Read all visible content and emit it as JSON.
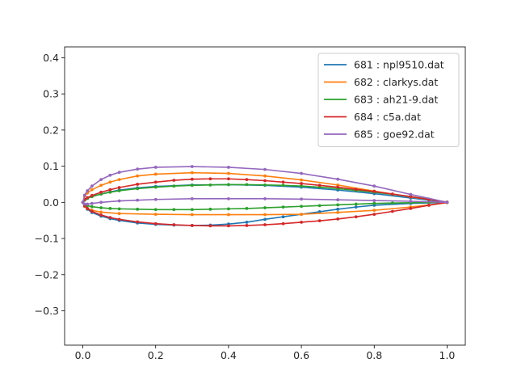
{
  "chart_data": {
    "type": "line",
    "title": "",
    "xlabel": "",
    "ylabel": "",
    "xlim": [
      -0.05,
      1.05
    ],
    "ylim": [
      -0.395,
      0.43
    ],
    "xticks": [
      0.0,
      0.2,
      0.4,
      0.6,
      0.8,
      1.0
    ],
    "yticks": [
      -0.3,
      -0.2,
      -0.1,
      0.0,
      0.1,
      0.2,
      0.3,
      0.4
    ],
    "grid": false,
    "legend_position": "top-right",
    "series": [
      {
        "name": "681 : npl9510.dat",
        "color": "#1f77b4",
        "upper": [
          [
            1.0,
            0.0
          ],
          [
            0.95,
            0.006
          ],
          [
            0.9,
            0.012
          ],
          [
            0.8,
            0.024
          ],
          [
            0.7,
            0.034
          ],
          [
            0.6,
            0.042
          ],
          [
            0.5,
            0.047
          ],
          [
            0.4,
            0.049
          ],
          [
            0.3,
            0.048
          ],
          [
            0.2,
            0.044
          ],
          [
            0.15,
            0.04
          ],
          [
            0.1,
            0.034
          ],
          [
            0.075,
            0.029
          ],
          [
            0.05,
            0.023
          ],
          [
            0.025,
            0.016
          ],
          [
            0.0125,
            0.011
          ],
          [
            0.005,
            0.006
          ],
          [
            0.0,
            0.0
          ]
        ],
        "lower": [
          [
            0.0,
            0.0
          ],
          [
            0.005,
            -0.011
          ],
          [
            0.0125,
            -0.019
          ],
          [
            0.025,
            -0.028
          ],
          [
            0.05,
            -0.038
          ],
          [
            0.075,
            -0.045
          ],
          [
            0.1,
            -0.05
          ],
          [
            0.15,
            -0.057
          ],
          [
            0.2,
            -0.061
          ],
          [
            0.25,
            -0.063
          ],
          [
            0.3,
            -0.064
          ],
          [
            0.35,
            -0.063
          ],
          [
            0.4,
            -0.06
          ],
          [
            0.45,
            -0.055
          ],
          [
            0.5,
            -0.047
          ],
          [
            0.55,
            -0.04
          ],
          [
            0.6,
            -0.033
          ],
          [
            0.65,
            -0.026
          ],
          [
            0.7,
            -0.019
          ],
          [
            0.75,
            -0.013
          ],
          [
            0.8,
            -0.008
          ],
          [
            0.9,
            -0.003
          ],
          [
            1.0,
            0.0
          ]
        ]
      },
      {
        "name": "682 : clarkys.dat",
        "color": "#ff7f0e",
        "upper": [
          [
            1.0,
            0.001
          ],
          [
            0.9,
            0.015
          ],
          [
            0.8,
            0.031
          ],
          [
            0.7,
            0.048
          ],
          [
            0.6,
            0.062
          ],
          [
            0.5,
            0.073
          ],
          [
            0.4,
            0.08
          ],
          [
            0.3,
            0.082
          ],
          [
            0.2,
            0.078
          ],
          [
            0.15,
            0.073
          ],
          [
            0.1,
            0.063
          ],
          [
            0.075,
            0.056
          ],
          [
            0.05,
            0.047
          ],
          [
            0.025,
            0.035
          ],
          [
            0.0125,
            0.026
          ],
          [
            0.005,
            0.017
          ],
          [
            0.0,
            0.0
          ]
        ],
        "lower": [
          [
            0.0,
            0.0
          ],
          [
            0.005,
            -0.011
          ],
          [
            0.0125,
            -0.017
          ],
          [
            0.025,
            -0.022
          ],
          [
            0.05,
            -0.027
          ],
          [
            0.1,
            -0.031
          ],
          [
            0.2,
            -0.033
          ],
          [
            0.3,
            -0.034
          ],
          [
            0.4,
            -0.034
          ],
          [
            0.5,
            -0.034
          ],
          [
            0.6,
            -0.033
          ],
          [
            0.7,
            -0.028
          ],
          [
            0.8,
            -0.022
          ],
          [
            0.9,
            -0.013
          ],
          [
            1.0,
            -0.001
          ]
        ]
      },
      {
        "name": "683 : ah21-9.dat",
        "color": "#2ca02c",
        "upper": [
          [
            1.0,
            0.0
          ],
          [
            0.95,
            0.009
          ],
          [
            0.9,
            0.016
          ],
          [
            0.85,
            0.022
          ],
          [
            0.8,
            0.028
          ],
          [
            0.75,
            0.033
          ],
          [
            0.7,
            0.038
          ],
          [
            0.65,
            0.042
          ],
          [
            0.6,
            0.045
          ],
          [
            0.55,
            0.047
          ],
          [
            0.5,
            0.048
          ],
          [
            0.45,
            0.049
          ],
          [
            0.4,
            0.049
          ],
          [
            0.35,
            0.048
          ],
          [
            0.3,
            0.047
          ],
          [
            0.25,
            0.045
          ],
          [
            0.2,
            0.042
          ],
          [
            0.15,
            0.038
          ],
          [
            0.1,
            0.032
          ],
          [
            0.075,
            0.028
          ],
          [
            0.05,
            0.023
          ],
          [
            0.025,
            0.016
          ],
          [
            0.0125,
            0.011
          ],
          [
            0.005,
            0.007
          ],
          [
            0.0,
            0.0
          ]
        ],
        "lower": [
          [
            0.0,
            0.0
          ],
          [
            0.005,
            -0.006
          ],
          [
            0.0125,
            -0.009
          ],
          [
            0.025,
            -0.012
          ],
          [
            0.05,
            -0.015
          ],
          [
            0.075,
            -0.017
          ],
          [
            0.1,
            -0.018
          ],
          [
            0.15,
            -0.019
          ],
          [
            0.2,
            -0.02
          ],
          [
            0.25,
            -0.02
          ],
          [
            0.3,
            -0.02
          ],
          [
            0.35,
            -0.019
          ],
          [
            0.4,
            -0.018
          ],
          [
            0.45,
            -0.017
          ],
          [
            0.5,
            -0.015
          ],
          [
            0.55,
            -0.013
          ],
          [
            0.6,
            -0.011
          ],
          [
            0.65,
            -0.009
          ],
          [
            0.7,
            -0.007
          ],
          [
            0.75,
            -0.005
          ],
          [
            0.8,
            -0.003
          ],
          [
            0.85,
            -0.002
          ],
          [
            0.9,
            -0.001
          ],
          [
            0.95,
            0.0
          ],
          [
            1.0,
            0.0
          ]
        ]
      },
      {
        "name": "684 : c5a.dat",
        "color": "#d62728",
        "upper": [
          [
            1.0,
            0.0
          ],
          [
            0.95,
            0.008
          ],
          [
            0.9,
            0.016
          ],
          [
            0.85,
            0.023
          ],
          [
            0.8,
            0.03
          ],
          [
            0.75,
            0.036
          ],
          [
            0.7,
            0.042
          ],
          [
            0.65,
            0.047
          ],
          [
            0.6,
            0.052
          ],
          [
            0.55,
            0.056
          ],
          [
            0.5,
            0.06
          ],
          [
            0.45,
            0.063
          ],
          [
            0.4,
            0.065
          ],
          [
            0.35,
            0.065
          ],
          [
            0.3,
            0.064
          ],
          [
            0.25,
            0.061
          ],
          [
            0.2,
            0.056
          ],
          [
            0.15,
            0.05
          ],
          [
            0.1,
            0.041
          ],
          [
            0.075,
            0.035
          ],
          [
            0.05,
            0.028
          ],
          [
            0.025,
            0.019
          ],
          [
            0.0125,
            0.013
          ],
          [
            0.005,
            0.008
          ],
          [
            0.0,
            0.0
          ]
        ],
        "lower": [
          [
            0.0,
            0.0
          ],
          [
            0.005,
            -0.01
          ],
          [
            0.0125,
            -0.017
          ],
          [
            0.025,
            -0.025
          ],
          [
            0.05,
            -0.035
          ],
          [
            0.075,
            -0.042
          ],
          [
            0.1,
            -0.047
          ],
          [
            0.15,
            -0.054
          ],
          [
            0.2,
            -0.059
          ],
          [
            0.25,
            -0.062
          ],
          [
            0.3,
            -0.064
          ],
          [
            0.35,
            -0.065
          ],
          [
            0.4,
            -0.065
          ],
          [
            0.45,
            -0.064
          ],
          [
            0.5,
            -0.062
          ],
          [
            0.55,
            -0.059
          ],
          [
            0.6,
            -0.055
          ],
          [
            0.65,
            -0.051
          ],
          [
            0.7,
            -0.046
          ],
          [
            0.75,
            -0.04
          ],
          [
            0.8,
            -0.033
          ],
          [
            0.85,
            -0.025
          ],
          [
            0.9,
            -0.017
          ],
          [
            0.95,
            -0.008
          ],
          [
            1.0,
            0.0
          ]
        ]
      },
      {
        "name": "685 : goe92.dat",
        "color": "#9467bd",
        "upper": [
          [
            1.0,
            0.0
          ],
          [
            0.9,
            0.022
          ],
          [
            0.8,
            0.045
          ],
          [
            0.7,
            0.064
          ],
          [
            0.6,
            0.08
          ],
          [
            0.5,
            0.091
          ],
          [
            0.4,
            0.097
          ],
          [
            0.3,
            0.099
          ],
          [
            0.2,
            0.097
          ],
          [
            0.15,
            0.092
          ],
          [
            0.1,
            0.083
          ],
          [
            0.075,
            0.075
          ],
          [
            0.05,
            0.063
          ],
          [
            0.025,
            0.045
          ],
          [
            0.0125,
            0.032
          ],
          [
            0.005,
            0.02
          ],
          [
            0.0,
            0.0
          ]
        ],
        "lower": [
          [
            0.0,
            0.0
          ],
          [
            0.005,
            -0.005
          ],
          [
            0.0125,
            -0.005
          ],
          [
            0.025,
            -0.003
          ],
          [
            0.05,
            0.0
          ],
          [
            0.1,
            0.004
          ],
          [
            0.15,
            0.006
          ],
          [
            0.2,
            0.008
          ],
          [
            0.3,
            0.01
          ],
          [
            0.4,
            0.01
          ],
          [
            0.5,
            0.01
          ],
          [
            0.6,
            0.009
          ],
          [
            0.7,
            0.007
          ],
          [
            0.8,
            0.005
          ],
          [
            0.9,
            0.003
          ],
          [
            1.0,
            0.0
          ]
        ]
      }
    ]
  }
}
